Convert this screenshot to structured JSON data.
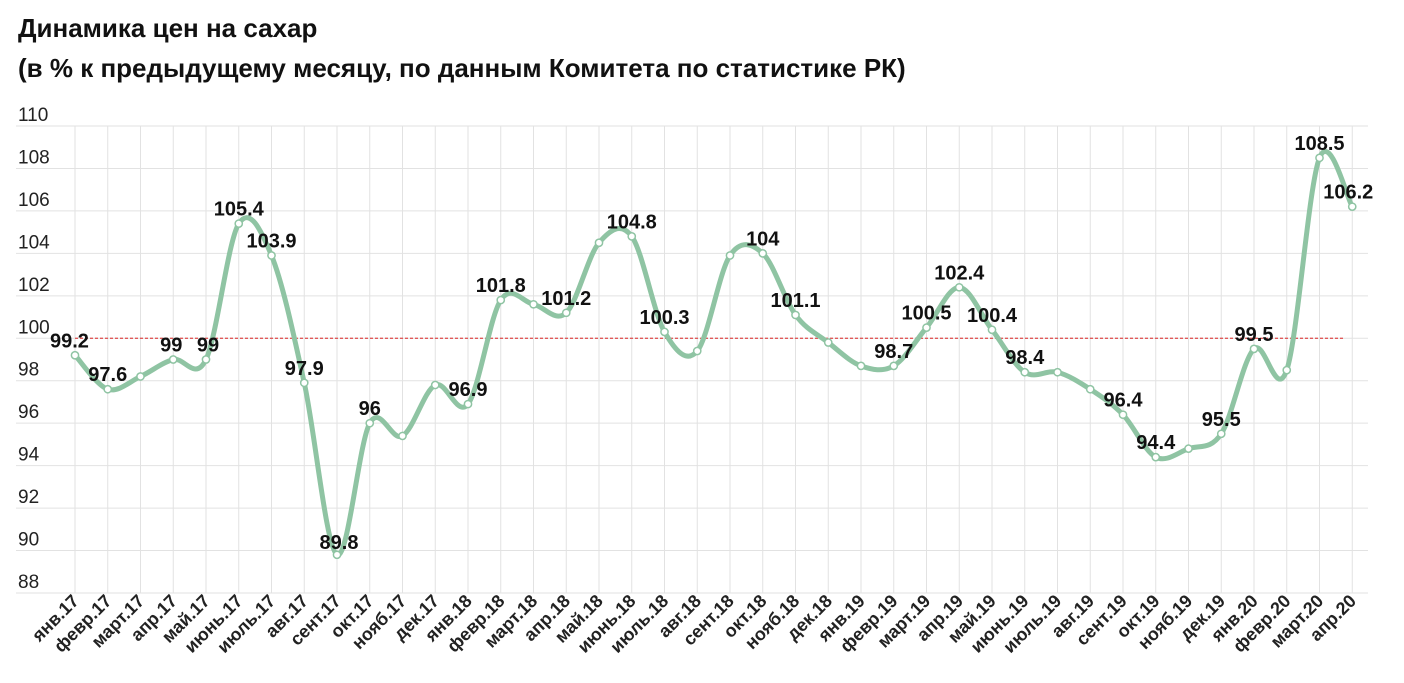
{
  "chart_data": {
    "type": "line",
    "title": "Динамика цен на сахар",
    "subtitle": "(в % к предыдущему месяцу, по данным Комитета по статистике РК)",
    "xlabel": "",
    "ylabel": "",
    "ylim": [
      88,
      110
    ],
    "yticks": [
      88,
      90,
      92,
      94,
      96,
      98,
      100,
      102,
      104,
      106,
      108,
      110
    ],
    "grid": true,
    "reference_line": 100,
    "categories": [
      "янв.17",
      "февр.17",
      "март.17",
      "апр.17",
      "май.17",
      "июнь.17",
      "июль.17",
      "авг.17",
      "сент.17",
      "окт.17",
      "нояб.17",
      "дек.17",
      "янв.18",
      "февр.18",
      "март.18",
      "апр.18",
      "май.18",
      "июнь.18",
      "июль.18",
      "авг.18",
      "сент.18",
      "окт.18",
      "нояб.18",
      "дек.18",
      "янв.19",
      "февр.19",
      "март.19",
      "апр.19",
      "май.19",
      "июнь.19",
      "июль.19",
      "авг.19",
      "сент.19",
      "окт.19",
      "нояб.19",
      "дек.19",
      "янв.20",
      "февр.20",
      "март.20",
      "апр.20"
    ],
    "values": [
      99.2,
      97.6,
      98.2,
      99,
      99,
      105.4,
      103.9,
      97.9,
      89.8,
      96,
      95.4,
      97.8,
      96.9,
      101.8,
      101.6,
      101.2,
      104.5,
      104.8,
      100.3,
      99.4,
      103.9,
      104,
      101.1,
      99.8,
      98.7,
      98.7,
      100.5,
      102.4,
      100.4,
      98.4,
      98.4,
      97.6,
      96.4,
      94.4,
      94.8,
      95.5,
      99.5,
      98.5,
      108.5,
      106.2
    ],
    "data_labels": [
      {
        "index": 0,
        "text": "99.2"
      },
      {
        "index": 1,
        "text": "97.6"
      },
      {
        "index": 3,
        "text": "99"
      },
      {
        "index": 4,
        "text": "99"
      },
      {
        "index": 5,
        "text": "105.4"
      },
      {
        "index": 6,
        "text": "103.9"
      },
      {
        "index": 7,
        "text": "97.9"
      },
      {
        "index": 8,
        "text": "89.8"
      },
      {
        "index": 9,
        "text": "96"
      },
      {
        "index": 12,
        "text": "96.9"
      },
      {
        "index": 13,
        "text": "101.8"
      },
      {
        "index": 15,
        "text": "101.2"
      },
      {
        "index": 17,
        "text": "104.8"
      },
      {
        "index": 18,
        "text": "100.3"
      },
      {
        "index": 21,
        "text": "104"
      },
      {
        "index": 22,
        "text": "101.1"
      },
      {
        "index": 25,
        "text": "98.7"
      },
      {
        "index": 26,
        "text": "100.5"
      },
      {
        "index": 27,
        "text": "102.4"
      },
      {
        "index": 28,
        "text": "100.4"
      },
      {
        "index": 29,
        "text": "98.4"
      },
      {
        "index": 32,
        "text": "96.4"
      },
      {
        "index": 33,
        "text": "94.4"
      },
      {
        "index": 35,
        "text": "95.5"
      },
      {
        "index": 36,
        "text": "99.5"
      },
      {
        "index": 38,
        "text": "108.5"
      },
      {
        "index": 39,
        "text": "106.2"
      }
    ],
    "colors": {
      "line": "#8fc4a3",
      "marker_fill": "#ffffff",
      "reference": "#e05a5a",
      "grid": "#e2e2e2"
    }
  }
}
